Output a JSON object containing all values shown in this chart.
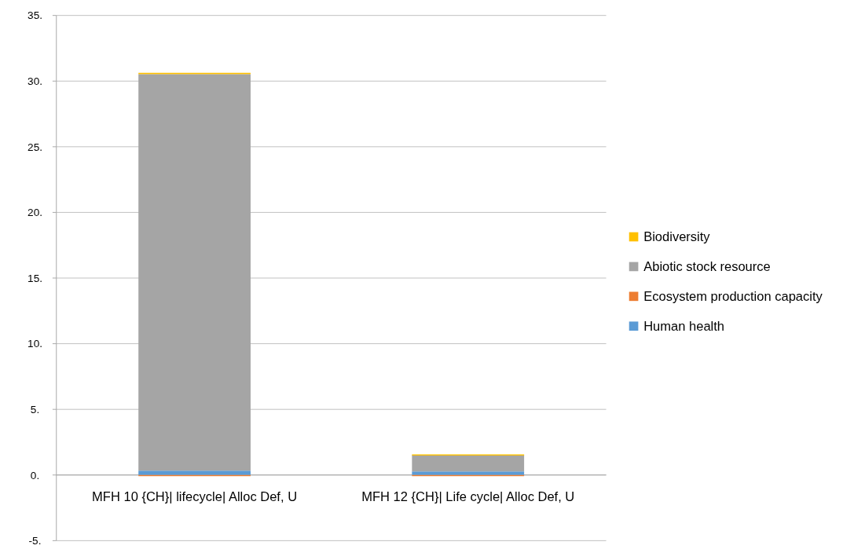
{
  "chart_data": {
    "type": "bar",
    "stacked": true,
    "categories": [
      "MFH 10 {CH}| lifecycle| Alloc Def, U",
      "MFH 12 {CH}| Life cycle| Alloc Def, U"
    ],
    "series": [
      {
        "name": "Human health",
        "color": "#5b9bd5",
        "values": [
          0.33,
          0.27
        ]
      },
      {
        "name": "Ecosystem production capacity",
        "color": "#ed7d31",
        "values": [
          -0.05,
          -0.03
        ]
      },
      {
        "name": "Abiotic stock resource",
        "color": "#a5a5a5",
        "values": [
          30.2,
          1.25
        ]
      },
      {
        "name": "Biodiversity",
        "color": "#ffc000",
        "values": [
          0.1,
          0.05
        ]
      }
    ],
    "ylim": [
      -5,
      35
    ],
    "yticks": [
      {
        "value": -5,
        "label": "-5."
      },
      {
        "value": 0,
        "label": "0."
      },
      {
        "value": 5,
        "label": "5."
      },
      {
        "value": 10,
        "label": "10."
      },
      {
        "value": 15,
        "label": "15."
      },
      {
        "value": 20,
        "label": "20."
      },
      {
        "value": 25,
        "label": "25."
      },
      {
        "value": 30,
        "label": "30."
      },
      {
        "value": 35,
        "label": "35."
      }
    ],
    "grid": "y",
    "legend": "right"
  }
}
